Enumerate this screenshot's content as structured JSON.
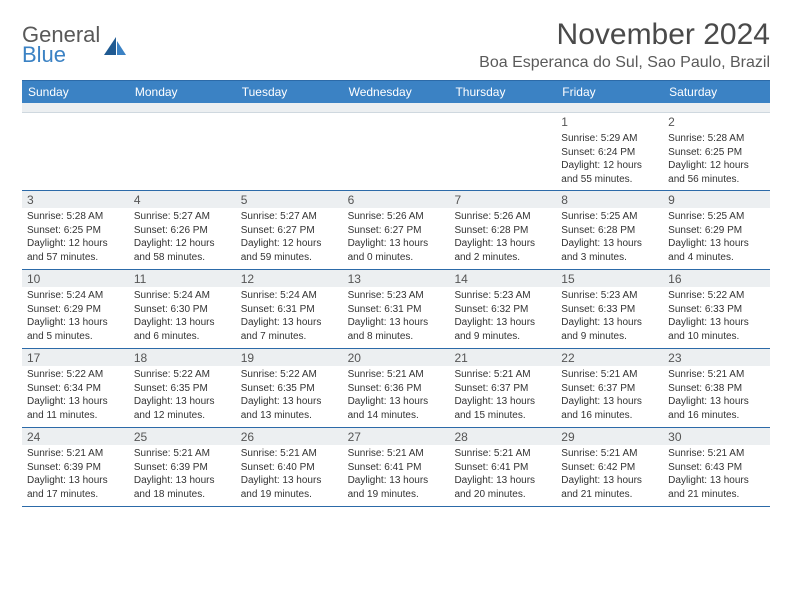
{
  "logo": {
    "general": "General",
    "blue": "Blue"
  },
  "title": "November 2024",
  "location": "Boa Esperanca do Sul, Sao Paulo, Brazil",
  "weekdays": [
    "Sunday",
    "Monday",
    "Tuesday",
    "Wednesday",
    "Thursday",
    "Friday",
    "Saturday"
  ],
  "colors": {
    "header_bg": "#3b82c4",
    "rule": "#2c6aa8",
    "daybar": "#eceff1",
    "text": "#333333",
    "muted": "#595959"
  },
  "weeks": [
    [
      null,
      null,
      null,
      null,
      null,
      {
        "n": "1",
        "sunrise": "Sunrise: 5:29 AM",
        "sunset": "Sunset: 6:24 PM",
        "day1": "Daylight: 12 hours",
        "day2": "and 55 minutes."
      },
      {
        "n": "2",
        "sunrise": "Sunrise: 5:28 AM",
        "sunset": "Sunset: 6:25 PM",
        "day1": "Daylight: 12 hours",
        "day2": "and 56 minutes."
      }
    ],
    [
      {
        "n": "3",
        "sunrise": "Sunrise: 5:28 AM",
        "sunset": "Sunset: 6:25 PM",
        "day1": "Daylight: 12 hours",
        "day2": "and 57 minutes."
      },
      {
        "n": "4",
        "sunrise": "Sunrise: 5:27 AM",
        "sunset": "Sunset: 6:26 PM",
        "day1": "Daylight: 12 hours",
        "day2": "and 58 minutes."
      },
      {
        "n": "5",
        "sunrise": "Sunrise: 5:27 AM",
        "sunset": "Sunset: 6:27 PM",
        "day1": "Daylight: 12 hours",
        "day2": "and 59 minutes."
      },
      {
        "n": "6",
        "sunrise": "Sunrise: 5:26 AM",
        "sunset": "Sunset: 6:27 PM",
        "day1": "Daylight: 13 hours",
        "day2": "and 0 minutes."
      },
      {
        "n": "7",
        "sunrise": "Sunrise: 5:26 AM",
        "sunset": "Sunset: 6:28 PM",
        "day1": "Daylight: 13 hours",
        "day2": "and 2 minutes."
      },
      {
        "n": "8",
        "sunrise": "Sunrise: 5:25 AM",
        "sunset": "Sunset: 6:28 PM",
        "day1": "Daylight: 13 hours",
        "day2": "and 3 minutes."
      },
      {
        "n": "9",
        "sunrise": "Sunrise: 5:25 AM",
        "sunset": "Sunset: 6:29 PM",
        "day1": "Daylight: 13 hours",
        "day2": "and 4 minutes."
      }
    ],
    [
      {
        "n": "10",
        "sunrise": "Sunrise: 5:24 AM",
        "sunset": "Sunset: 6:29 PM",
        "day1": "Daylight: 13 hours",
        "day2": "and 5 minutes."
      },
      {
        "n": "11",
        "sunrise": "Sunrise: 5:24 AM",
        "sunset": "Sunset: 6:30 PM",
        "day1": "Daylight: 13 hours",
        "day2": "and 6 minutes."
      },
      {
        "n": "12",
        "sunrise": "Sunrise: 5:24 AM",
        "sunset": "Sunset: 6:31 PM",
        "day1": "Daylight: 13 hours",
        "day2": "and 7 minutes."
      },
      {
        "n": "13",
        "sunrise": "Sunrise: 5:23 AM",
        "sunset": "Sunset: 6:31 PM",
        "day1": "Daylight: 13 hours",
        "day2": "and 8 minutes."
      },
      {
        "n": "14",
        "sunrise": "Sunrise: 5:23 AM",
        "sunset": "Sunset: 6:32 PM",
        "day1": "Daylight: 13 hours",
        "day2": "and 9 minutes."
      },
      {
        "n": "15",
        "sunrise": "Sunrise: 5:23 AM",
        "sunset": "Sunset: 6:33 PM",
        "day1": "Daylight: 13 hours",
        "day2": "and 9 minutes."
      },
      {
        "n": "16",
        "sunrise": "Sunrise: 5:22 AM",
        "sunset": "Sunset: 6:33 PM",
        "day1": "Daylight: 13 hours",
        "day2": "and 10 minutes."
      }
    ],
    [
      {
        "n": "17",
        "sunrise": "Sunrise: 5:22 AM",
        "sunset": "Sunset: 6:34 PM",
        "day1": "Daylight: 13 hours",
        "day2": "and 11 minutes."
      },
      {
        "n": "18",
        "sunrise": "Sunrise: 5:22 AM",
        "sunset": "Sunset: 6:35 PM",
        "day1": "Daylight: 13 hours",
        "day2": "and 12 minutes."
      },
      {
        "n": "19",
        "sunrise": "Sunrise: 5:22 AM",
        "sunset": "Sunset: 6:35 PM",
        "day1": "Daylight: 13 hours",
        "day2": "and 13 minutes."
      },
      {
        "n": "20",
        "sunrise": "Sunrise: 5:21 AM",
        "sunset": "Sunset: 6:36 PM",
        "day1": "Daylight: 13 hours",
        "day2": "and 14 minutes."
      },
      {
        "n": "21",
        "sunrise": "Sunrise: 5:21 AM",
        "sunset": "Sunset: 6:37 PM",
        "day1": "Daylight: 13 hours",
        "day2": "and 15 minutes."
      },
      {
        "n": "22",
        "sunrise": "Sunrise: 5:21 AM",
        "sunset": "Sunset: 6:37 PM",
        "day1": "Daylight: 13 hours",
        "day2": "and 16 minutes."
      },
      {
        "n": "23",
        "sunrise": "Sunrise: 5:21 AM",
        "sunset": "Sunset: 6:38 PM",
        "day1": "Daylight: 13 hours",
        "day2": "and 16 minutes."
      }
    ],
    [
      {
        "n": "24",
        "sunrise": "Sunrise: 5:21 AM",
        "sunset": "Sunset: 6:39 PM",
        "day1": "Daylight: 13 hours",
        "day2": "and 17 minutes."
      },
      {
        "n": "25",
        "sunrise": "Sunrise: 5:21 AM",
        "sunset": "Sunset: 6:39 PM",
        "day1": "Daylight: 13 hours",
        "day2": "and 18 minutes."
      },
      {
        "n": "26",
        "sunrise": "Sunrise: 5:21 AM",
        "sunset": "Sunset: 6:40 PM",
        "day1": "Daylight: 13 hours",
        "day2": "and 19 minutes."
      },
      {
        "n": "27",
        "sunrise": "Sunrise: 5:21 AM",
        "sunset": "Sunset: 6:41 PM",
        "day1": "Daylight: 13 hours",
        "day2": "and 19 minutes."
      },
      {
        "n": "28",
        "sunrise": "Sunrise: 5:21 AM",
        "sunset": "Sunset: 6:41 PM",
        "day1": "Daylight: 13 hours",
        "day2": "and 20 minutes."
      },
      {
        "n": "29",
        "sunrise": "Sunrise: 5:21 AM",
        "sunset": "Sunset: 6:42 PM",
        "day1": "Daylight: 13 hours",
        "day2": "and 21 minutes."
      },
      {
        "n": "30",
        "sunrise": "Sunrise: 5:21 AM",
        "sunset": "Sunset: 6:43 PM",
        "day1": "Daylight: 13 hours",
        "day2": "and 21 minutes."
      }
    ]
  ]
}
